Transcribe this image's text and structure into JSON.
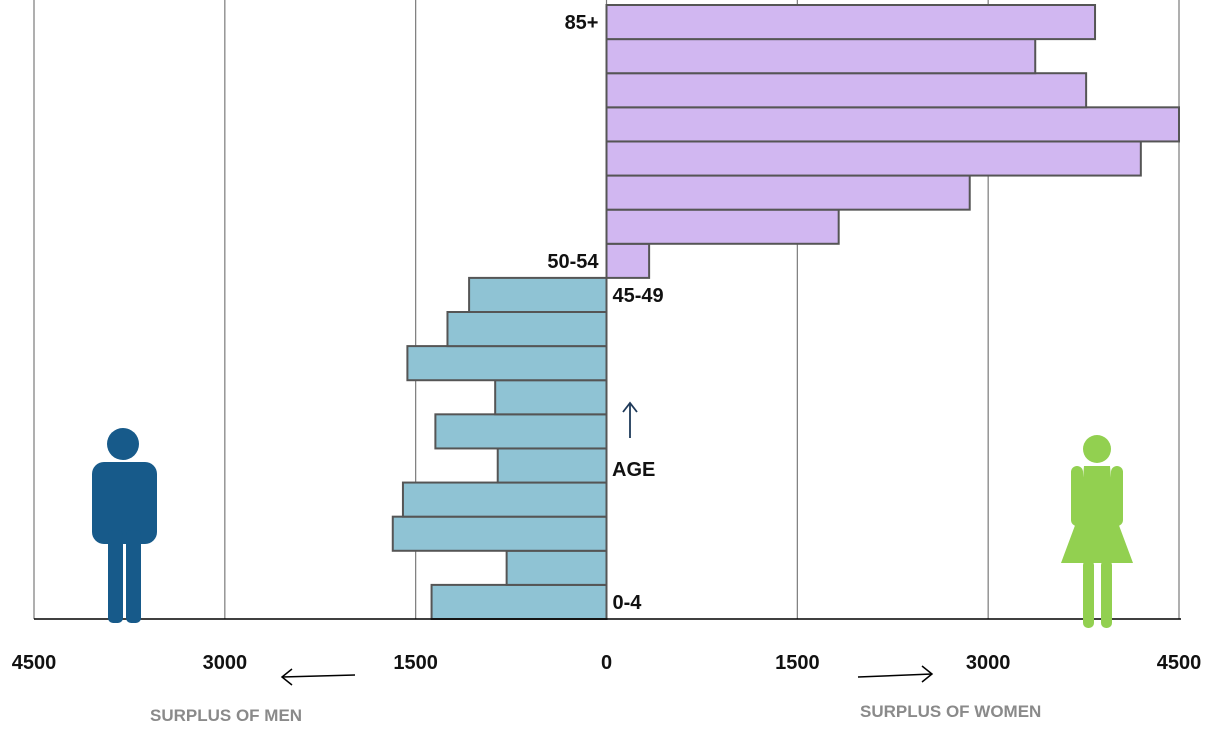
{
  "chart_data": {
    "type": "bar",
    "orientation": "horizontal",
    "categories": [
      "0-4",
      "5-9",
      "10-14",
      "15-19",
      "20-24",
      "25-29",
      "30-34",
      "35-39",
      "40-44",
      "45-49",
      "50-54",
      "55-59",
      "60-64",
      "65-69",
      "70-74",
      "75-79",
      "80-84",
      "85+"
    ],
    "values": [
      -1375,
      -785,
      -1680,
      -1600,
      -855,
      -1345,
      -875,
      -1565,
      -1250,
      -1080,
      335,
      1825,
      2855,
      4200,
      4500,
      3770,
      3370,
      3840
    ],
    "series_colors": {
      "men": "#8fc3d4",
      "women": "#d1b7f1"
    },
    "bar_outline_color": "#555555",
    "xlim": [
      -4500,
      4500
    ],
    "x_ticks": [
      -4500,
      -3000,
      -1500,
      0,
      1500,
      3000,
      4500
    ],
    "x_tick_labels": [
      "4500",
      "3000",
      "1500",
      "0",
      "1500",
      "3000",
      "4500"
    ],
    "gridlines": "vertical",
    "age_labels_shown": [
      "0-4",
      "45-49",
      "50-54",
      "85+"
    ],
    "age_axis_label": "AGE",
    "left_annotation": "SURPLUS OF MEN",
    "right_annotation": "SURPLUS OF WOMEN",
    "icons": {
      "man": "man-icon",
      "woman": "woman-icon",
      "man_color": "#175a8a",
      "woman_color": "#92d050"
    }
  }
}
